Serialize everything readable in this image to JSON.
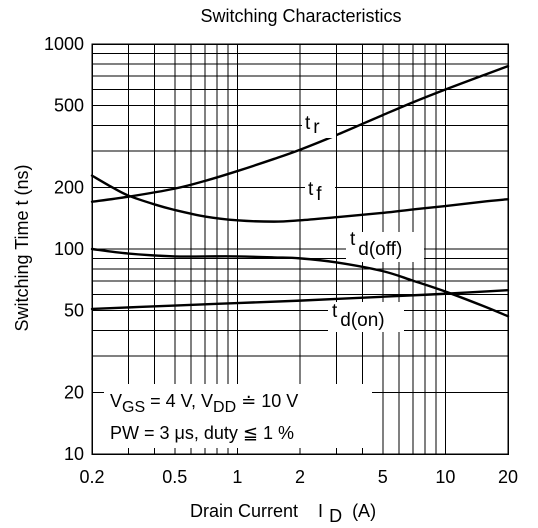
{
  "chart_data": {
    "type": "line",
    "title": "Switching Characteristics",
    "xlabel": "Drain Current",
    "xlabel_symbol": "I",
    "xlabel_sub": "D",
    "xlabel_unit": "(A)",
    "ylabel": "Switching Time  t  (ns)",
    "x_scale": "log",
    "y_scale": "log",
    "xlim": [
      0.2,
      20
    ],
    "ylim": [
      10,
      1000
    ],
    "grid": true,
    "x_ticks": [
      {
        "value": 0.2,
        "label": "0.2"
      },
      {
        "value": 0.5,
        "label": "0.5"
      },
      {
        "value": 1,
        "label": "1"
      },
      {
        "value": 2,
        "label": "2"
      },
      {
        "value": 5,
        "label": "5"
      },
      {
        "value": 10,
        "label": "10"
      },
      {
        "value": 20,
        "label": "20"
      }
    ],
    "y_ticks": [
      {
        "value": 10,
        "label": "10"
      },
      {
        "value": 20,
        "label": "20"
      },
      {
        "value": 50,
        "label": "50"
      },
      {
        "value": 100,
        "label": "100"
      },
      {
        "value": 200,
        "label": "200"
      },
      {
        "value": 500,
        "label": "500"
      },
      {
        "value": 1000,
        "label": "1000"
      }
    ],
    "series": [
      {
        "name": "t r",
        "label_main": "t",
        "label_sub": "r",
        "x": [
          0.2,
          0.3,
          0.5,
          0.7,
          1,
          1.5,
          2,
          3,
          5,
          7,
          10,
          15,
          20
        ],
        "y": [
          170,
          180,
          197,
          215,
          240,
          275,
          305,
          360,
          450,
          520,
          600,
          700,
          780
        ]
      },
      {
        "name": "t f",
        "label_main": "t",
        "label_sub": "f",
        "x": [
          0.2,
          0.25,
          0.3,
          0.4,
          0.5,
          0.7,
          1,
          1.5,
          2,
          3,
          5,
          7,
          10,
          15,
          20
        ],
        "y": [
          228,
          200,
          182,
          165,
          155,
          144,
          138,
          136,
          138,
          143,
          150,
          156,
          162,
          170,
          175
        ]
      },
      {
        "name": "t d(off)",
        "label_main": "t",
        "label_sub": "d(off)",
        "x": [
          0.2,
          0.3,
          0.5,
          0.7,
          1,
          1.5,
          2,
          3,
          5,
          7,
          10,
          15,
          20
        ],
        "y": [
          100,
          95,
          92,
          92,
          92,
          91,
          90,
          86,
          78,
          70,
          62,
          53,
          47
        ]
      },
      {
        "name": "t d(on)",
        "label_main": "t",
        "label_sub": "d(on)",
        "x": [
          0.2,
          0.5,
          1,
          2,
          5,
          10,
          20
        ],
        "y": [
          51,
          53,
          54.5,
          56,
          58.5,
          60.5,
          63
        ]
      }
    ],
    "annotations": [
      {
        "parts": [
          "V",
          "GS",
          " = 4 V, V",
          "DD",
          " ≐ 10 V"
        ]
      },
      {
        "parts": [
          "PW = 3 μs, duty ",
          "≦",
          " 1 %"
        ]
      }
    ]
  }
}
